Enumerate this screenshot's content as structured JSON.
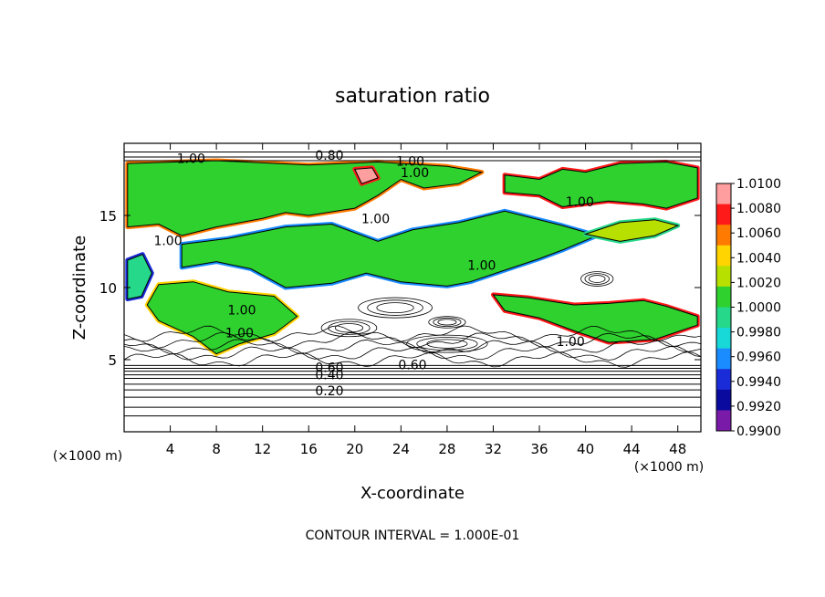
{
  "chart_data": {
    "type": "heatmap",
    "title": "saturation ratio",
    "xlabel": "X-coordinate",
    "ylabel": "Z-coordinate",
    "x_unit_label": "(×1000 m)",
    "y_unit_label": "(×1000 m)",
    "xlim": [
      0,
      50
    ],
    "ylim": [
      0,
      20
    ],
    "x_ticks": [
      4,
      8,
      12,
      16,
      20,
      24,
      28,
      32,
      36,
      40,
      44,
      48
    ],
    "y_ticks": [
      5,
      10,
      15
    ],
    "contour_interval_label": "CONTOUR INTERVAL = 1.000E-01",
    "contour_labels": [
      "1.00",
      "0.80",
      "1.00",
      "1.00",
      "1.00",
      "1.00",
      "1.00",
      "1.00",
      "1.00",
      "1.00",
      "1.00",
      "0.60",
      "0.60",
      "0.40",
      "0.20"
    ],
    "colorbar": {
      "range": [
        0.99,
        1.01
      ],
      "levels": [
        "1.0100",
        "1.0080",
        "1.0060",
        "1.0040",
        "1.0020",
        "1.0000",
        "0.9980",
        "0.9960",
        "0.9940",
        "0.9920",
        "0.9900"
      ],
      "colors": [
        "#ff9e9e",
        "#ff1a1a",
        "#ff7a00",
        "#ffd400",
        "#b7e000",
        "#2ed12e",
        "#26d88a",
        "#18d8d8",
        "#1a8cff",
        "#1a2cd8",
        "#0a0a9e",
        "#7a1aa8"
      ]
    }
  }
}
